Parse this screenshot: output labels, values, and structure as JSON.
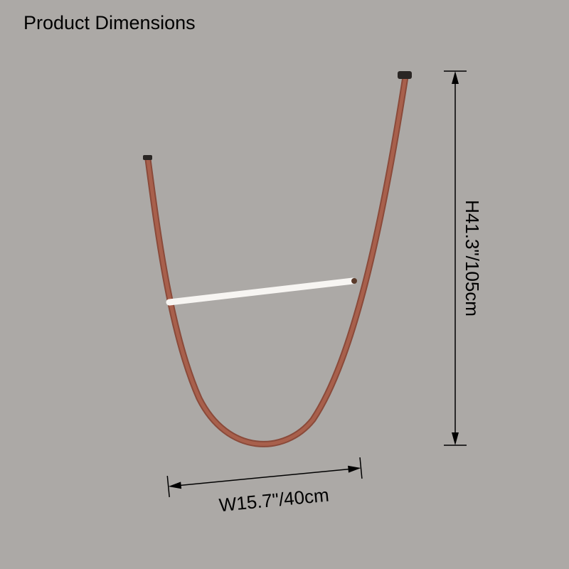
{
  "header": {
    "title": "Product Dimensions"
  },
  "dimensions": {
    "width": "W15.7\"/40cm",
    "height": "H41.3\"/105cm"
  }
}
